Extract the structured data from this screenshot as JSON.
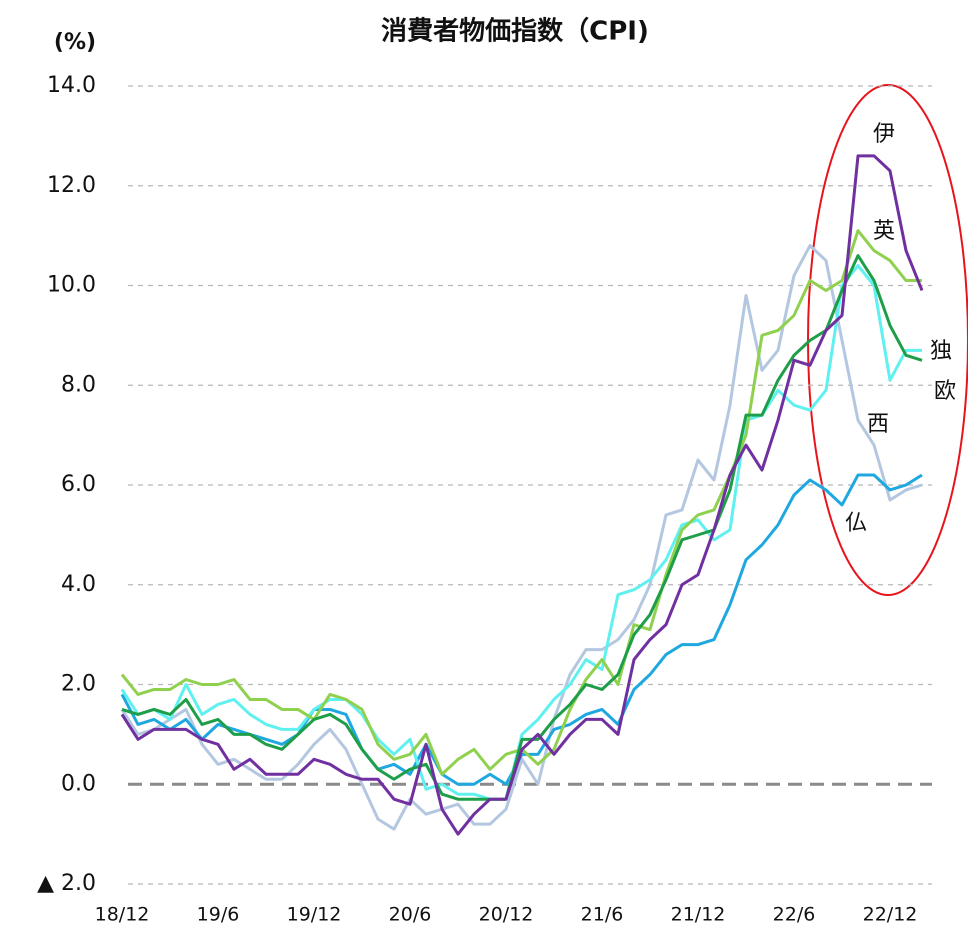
{
  "chart_data": {
    "type": "line",
    "title": "消費者物価指数（CPI)",
    "y_label": "(%)",
    "categories": [
      "18/12",
      null,
      null,
      null,
      null,
      null,
      "19/6",
      null,
      null,
      null,
      null,
      null,
      "19/12",
      null,
      null,
      null,
      null,
      null,
      "20/6",
      null,
      null,
      null,
      null,
      null,
      "20/12",
      null,
      null,
      null,
      null,
      null,
      "21/6",
      null,
      null,
      null,
      null,
      null,
      "21/12",
      null,
      null,
      null,
      null,
      null,
      "22/6",
      null,
      null,
      null,
      null,
      null,
      "22/12",
      null,
      null
    ],
    "ylim": [
      -2,
      14
    ],
    "yticks": [
      {
        "value": -2,
        "label": "▲ 2.0"
      },
      {
        "value": 0,
        "label": "0.0"
      },
      {
        "value": 2,
        "label": "2.0"
      },
      {
        "value": 4,
        "label": "4.0"
      },
      {
        "value": 6,
        "label": "6.0"
      },
      {
        "value": 8,
        "label": "8.0"
      },
      {
        "value": 10,
        "label": "10.0"
      },
      {
        "value": 12,
        "label": "12.0"
      },
      {
        "value": 14,
        "label": "14.0"
      }
    ],
    "grid": true,
    "series": [
      {
        "name": "西",
        "color": "#b4c7e0",
        "values": [
          1.5,
          1.0,
          1.1,
          1.3,
          1.5,
          0.8,
          0.4,
          0.5,
          0.3,
          0.1,
          0.1,
          0.4,
          0.8,
          1.1,
          0.7,
          0.0,
          -0.7,
          -0.9,
          -0.3,
          -0.6,
          -0.5,
          -0.4,
          -0.8,
          -0.8,
          -0.5,
          0.5,
          0.0,
          1.3,
          2.2,
          2.7,
          2.7,
          2.9,
          3.3,
          4.0,
          5.4,
          5.5,
          6.5,
          6.1,
          7.6,
          9.8,
          8.3,
          8.7,
          10.2,
          10.8,
          10.5,
          8.9,
          7.3,
          6.8,
          5.7,
          5.9,
          6.0
        ]
      },
      {
        "name": "仏",
        "color": "#1fa8e0",
        "values": [
          1.8,
          1.2,
          1.3,
          1.1,
          1.3,
          0.9,
          1.2,
          1.1,
          1.0,
          0.9,
          0.8,
          1.0,
          1.5,
          1.5,
          1.4,
          0.7,
          0.3,
          0.4,
          0.2,
          0.8,
          0.2,
          0.0,
          0.0,
          0.2,
          0.0,
          0.6,
          0.6,
          1.1,
          1.2,
          1.4,
          1.5,
          1.2,
          1.9,
          2.2,
          2.6,
          2.8,
          2.8,
          2.9,
          3.6,
          4.5,
          4.8,
          5.2,
          5.8,
          6.1,
          5.9,
          5.6,
          6.2,
          6.2,
          5.9,
          6.0,
          6.2
        ]
      },
      {
        "name": "独",
        "color": "#5ff0f0",
        "values": [
          1.9,
          1.4,
          1.5,
          1.3,
          2.0,
          1.4,
          1.6,
          1.7,
          1.4,
          1.2,
          1.1,
          1.1,
          1.5,
          1.7,
          1.7,
          1.4,
          0.9,
          0.6,
          0.9,
          -0.1,
          0.0,
          -0.2,
          -0.2,
          -0.3,
          -0.3,
          1.0,
          1.3,
          1.7,
          2.0,
          2.5,
          2.3,
          3.8,
          3.9,
          4.1,
          4.5,
          5.2,
          5.3,
          4.9,
          5.1,
          7.3,
          7.4,
          7.9,
          7.6,
          7.5,
          7.9,
          10.0,
          10.4,
          10.0,
          8.1,
          8.7,
          8.7
        ]
      },
      {
        "name": "英",
        "color": "#8fd14f",
        "values": [
          2.2,
          1.8,
          1.9,
          1.9,
          2.1,
          2.0,
          2.0,
          2.1,
          1.7,
          1.7,
          1.5,
          1.5,
          1.3,
          1.8,
          1.7,
          1.5,
          0.8,
          0.5,
          0.6,
          1.0,
          0.2,
          0.5,
          0.7,
          0.3,
          0.6,
          0.7,
          0.4,
          0.7,
          1.5,
          2.1,
          2.5,
          2.0,
          3.2,
          3.1,
          4.2,
          5.1,
          5.4,
          5.5,
          6.2,
          7.0,
          9.0,
          9.1,
          9.4,
          10.1,
          9.9,
          10.1,
          11.1,
          10.7,
          10.5,
          10.1,
          10.1
        ]
      },
      {
        "name": "欧",
        "color": "#1e9e48",
        "values": [
          1.5,
          1.4,
          1.5,
          1.4,
          1.7,
          1.2,
          1.3,
          1.0,
          1.0,
          0.8,
          0.7,
          1.0,
          1.3,
          1.4,
          1.2,
          0.7,
          0.3,
          0.1,
          0.3,
          0.4,
          -0.2,
          -0.3,
          -0.3,
          -0.3,
          -0.3,
          0.9,
          0.9,
          1.3,
          1.6,
          2.0,
          1.9,
          2.2,
          3.0,
          3.4,
          4.1,
          4.9,
          5.0,
          5.1,
          5.9,
          7.4,
          7.4,
          8.1,
          8.6,
          8.9,
          9.1,
          9.9,
          10.6,
          10.1,
          9.2,
          8.6,
          8.5
        ]
      },
      {
        "name": "伊",
        "color": "#7030a0",
        "values": [
          1.4,
          0.9,
          1.1,
          1.1,
          1.1,
          0.9,
          0.8,
          0.3,
          0.5,
          0.2,
          0.2,
          0.2,
          0.5,
          0.4,
          0.2,
          0.1,
          0.1,
          -0.3,
          -0.4,
          0.8,
          -0.5,
          -1.0,
          -0.6,
          -0.3,
          -0.3,
          0.7,
          1.0,
          0.6,
          1.0,
          1.3,
          1.3,
          1.0,
          2.5,
          2.9,
          3.2,
          4.0,
          4.2,
          5.1,
          6.2,
          6.8,
          6.3,
          7.3,
          8.5,
          8.4,
          9.1,
          9.4,
          12.6,
          12.6,
          12.3,
          10.7,
          9.9
        ]
      }
    ]
  }
}
